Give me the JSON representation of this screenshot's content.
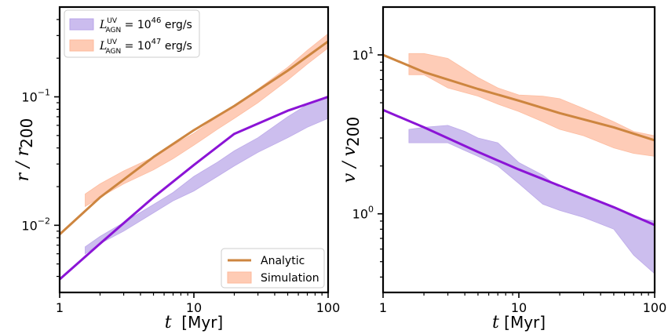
{
  "chart_data": [
    {
      "type": "line",
      "panel": "left",
      "xscale": "log",
      "yscale": "log",
      "xlim": [
        1,
        100
      ],
      "ylim": [
        0.003,
        0.5
      ],
      "xlabel": "t  [Myr]",
      "ylabel": "r / r200",
      "x_ticks": [
        {
          "value": 1,
          "label": "1"
        },
        {
          "value": 10,
          "label": "10"
        },
        {
          "value": 100,
          "label": "100"
        }
      ],
      "y_ticks": [
        {
          "value": 0.01,
          "label": "10",
          "exp": "−2"
        },
        {
          "value": 0.1,
          "label": "10",
          "exp": "−1"
        }
      ],
      "series": [
        {
          "name": "Analytic, L_AGN^UV = 10^46 erg/s",
          "kind": "line",
          "color": "#8B14D6",
          "x": [
            1,
            2,
            5,
            10,
            20,
            50,
            100
          ],
          "y": [
            0.0038,
            0.0072,
            0.0165,
            0.0295,
            0.0515,
            0.078,
            0.1
          ]
        },
        {
          "name": "Analytic, L_AGN^UV = 10^47 erg/s",
          "kind": "line",
          "color": "#CD853F",
          "x": [
            1,
            2,
            5,
            10,
            20,
            50,
            100
          ],
          "y": [
            0.0085,
            0.0165,
            0.034,
            0.055,
            0.085,
            0.16,
            0.27
          ]
        },
        {
          "name": "Simulation, L_AGN^UV = 10^46 erg/s",
          "kind": "band",
          "color": "#B9A5E8",
          "x": [
            1.55,
            2,
            3,
            5,
            7,
            10,
            15,
            20,
            30,
            50,
            70,
            100
          ],
          "low": [
            0.006,
            0.0072,
            0.009,
            0.0125,
            0.0155,
            0.0185,
            0.024,
            0.029,
            0.037,
            0.048,
            0.058,
            0.068
          ],
          "high": [
            0.0068,
            0.0082,
            0.0105,
            0.0145,
            0.018,
            0.024,
            0.031,
            0.038,
            0.048,
            0.07,
            0.087,
            0.102
          ]
        },
        {
          "name": "Simulation, L_AGN^UV = 10^47 erg/s",
          "kind": "band",
          "color": "#FDB99B",
          "x": [
            1.55,
            2,
            3,
            5,
            7,
            10,
            15,
            20,
            30,
            50,
            70,
            100
          ],
          "low": [
            0.014,
            0.0165,
            0.021,
            0.027,
            0.033,
            0.042,
            0.056,
            0.068,
            0.09,
            0.135,
            0.18,
            0.24
          ],
          "high": [
            0.0175,
            0.021,
            0.0265,
            0.034,
            0.042,
            0.052,
            0.07,
            0.085,
            0.115,
            0.17,
            0.23,
            0.31
          ]
        }
      ],
      "legend_luminosity": {
        "position": "top-left",
        "entries": [
          {
            "symbol": "L",
            "sup": "UV",
            "sub": "AGN",
            "eq": " = 10",
            "exp": "46",
            "unit": " erg/s",
            "color": "#B9A5E8"
          },
          {
            "symbol": "L",
            "sup": "UV",
            "sub": "AGN",
            "eq": " = 10",
            "exp": "47",
            "unit": " erg/s",
            "color": "#FDB99B"
          }
        ]
      },
      "legend_method": {
        "position": "bottom-right",
        "entries": [
          {
            "label": "Analytic",
            "kind": "line",
            "color": "#CD853F"
          },
          {
            "label": "Simulation",
            "kind": "band",
            "color": "#FDB99B"
          }
        ]
      }
    },
    {
      "type": "line",
      "panel": "right",
      "xscale": "log",
      "yscale": "log",
      "xlim": [
        1,
        100
      ],
      "ylim": [
        0.32,
        20
      ],
      "xlabel": "t [Myr]",
      "ylabel": "v / v200",
      "x_ticks": [
        {
          "value": 1,
          "label": "1"
        },
        {
          "value": 10,
          "label": "10"
        },
        {
          "value": 100,
          "label": "100"
        }
      ],
      "y_ticks": [
        {
          "value": 1,
          "label": "10",
          "exp": "0"
        },
        {
          "value": 10,
          "label": "10",
          "exp": "1"
        }
      ],
      "series": [
        {
          "name": "Analytic, L_AGN^UV = 10^46 erg/s",
          "kind": "line",
          "color": "#8B14D6",
          "x": [
            1,
            2,
            5,
            10,
            20,
            50,
            100
          ],
          "y": [
            4.5,
            3.5,
            2.45,
            1.9,
            1.5,
            1.1,
            0.85
          ]
        },
        {
          "name": "Analytic, L_AGN^UV = 10^47 erg/s",
          "kind": "line",
          "color": "#CD853F",
          "x": [
            1,
            2,
            5,
            10,
            20,
            50,
            100
          ],
          "y": [
            10,
            7.8,
            6.1,
            5.15,
            4.3,
            3.5,
            2.9
          ]
        },
        {
          "name": "Simulation, L_AGN^UV = 10^46 erg/s",
          "kind": "band",
          "color": "#B9A5E8",
          "x": [
            1.55,
            2,
            3,
            4,
            5,
            7,
            10,
            15,
            20,
            30,
            50,
            70,
            100
          ],
          "low": [
            2.8,
            2.8,
            2.8,
            2.5,
            2.3,
            2.0,
            1.55,
            1.15,
            1.05,
            0.95,
            0.8,
            0.55,
            0.42
          ],
          "high": [
            3.4,
            3.5,
            3.6,
            3.3,
            3.0,
            2.8,
            2.1,
            1.75,
            1.45,
            1.3,
            1.1,
            0.95,
            0.9
          ]
        },
        {
          "name": "Simulation, L_AGN^UV = 10^47 erg/s",
          "kind": "band",
          "color": "#FDB99B",
          "x": [
            1.55,
            2,
            3,
            5,
            7,
            10,
            15,
            20,
            30,
            50,
            70,
            100
          ],
          "low": [
            7.5,
            7.5,
            6.2,
            5.5,
            4.9,
            4.4,
            3.8,
            3.4,
            3.1,
            2.6,
            2.4,
            2.3
          ],
          "high": [
            10.2,
            10.2,
            9.5,
            7.2,
            6.2,
            5.6,
            5.5,
            5.3,
            4.6,
            3.8,
            3.3,
            3.1
          ]
        }
      ]
    }
  ]
}
